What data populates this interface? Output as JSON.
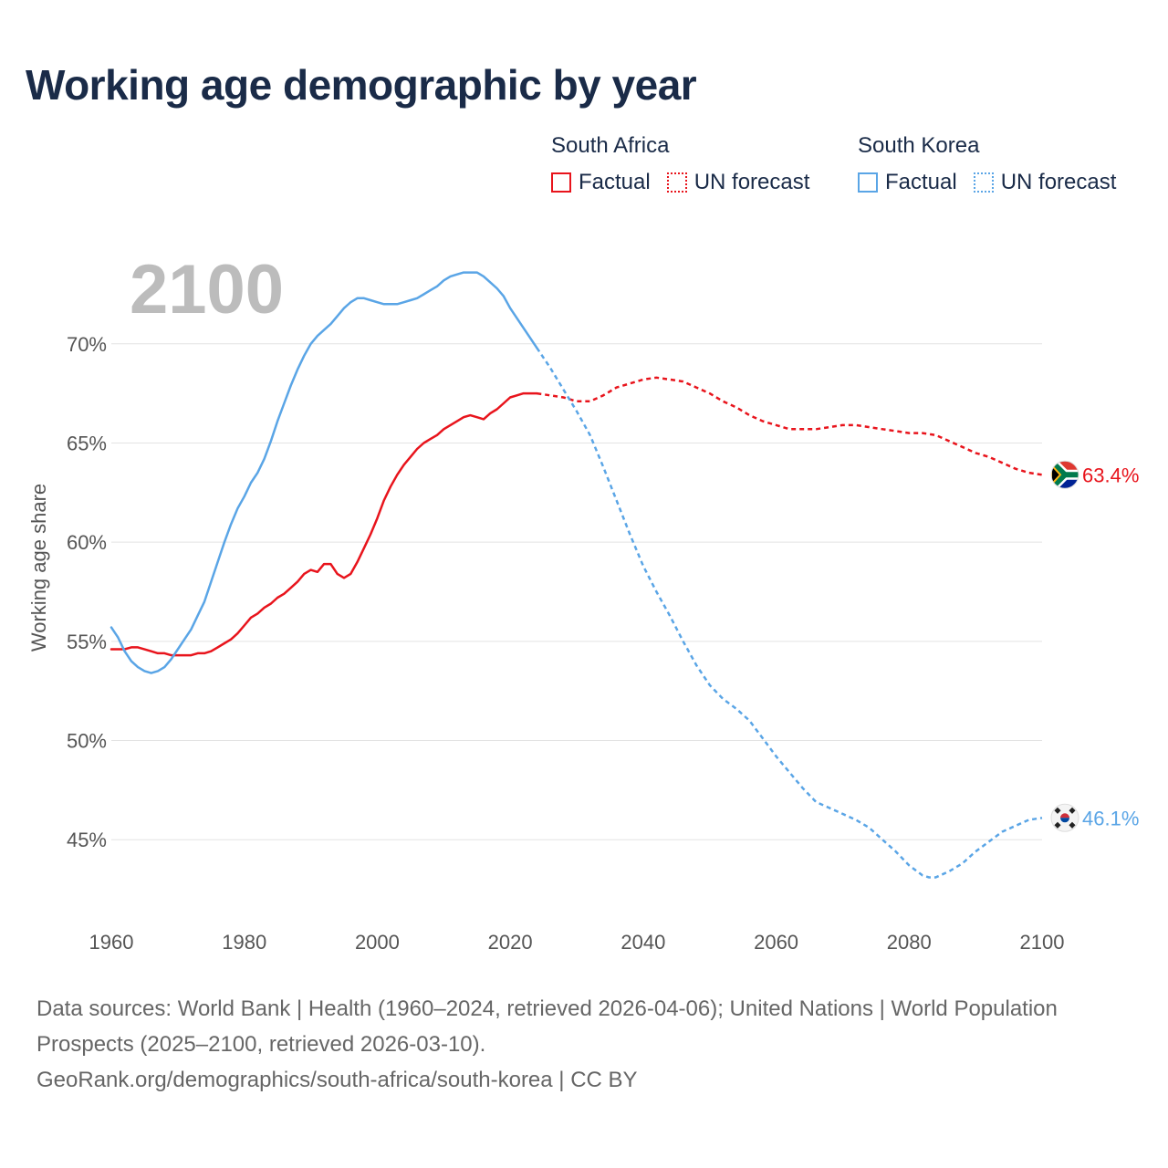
{
  "title": "Working age demographic by year",
  "legend": {
    "groups": [
      {
        "name": "South Africa",
        "color": "#e8141c",
        "factual_label": "Factual",
        "forecast_label": "UN forecast"
      },
      {
        "name": "South Korea",
        "color": "#5aa5e6",
        "factual_label": "Factual",
        "forecast_label": "UN forecast"
      }
    ]
  },
  "chart_data": {
    "type": "line",
    "title": "Working age demographic by year",
    "ylabel": "Working age share",
    "xlabel": "",
    "xlim": [
      1960,
      2100
    ],
    "ylim": [
      40.5,
      74.5
    ],
    "x_ticks": [
      1960,
      1980,
      2000,
      2020,
      2040,
      2060,
      2080,
      2100
    ],
    "x_tick_labels": [
      "1960",
      "1980",
      "2000",
      "2020",
      "2040",
      "2060",
      "2080",
      "2100"
    ],
    "y_ticks": [
      45,
      50,
      55,
      60,
      65,
      70
    ],
    "y_tick_labels": [
      "45%",
      "50%",
      "55%",
      "60%",
      "65%",
      "70%"
    ],
    "current_year_label": "2100",
    "factual_end_year": 2024,
    "series": [
      {
        "name": "South Africa",
        "color": "#e8141c",
        "end_label": "63.4%",
        "flag": "south-africa-flag-icon",
        "points": [
          [
            1960,
            54.6
          ],
          [
            1962,
            54.6
          ],
          [
            1963,
            54.7
          ],
          [
            1964,
            54.7
          ],
          [
            1966,
            54.5
          ],
          [
            1967,
            54.4
          ],
          [
            1968,
            54.4
          ],
          [
            1969,
            54.3
          ],
          [
            1970,
            54.3
          ],
          [
            1972,
            54.3
          ],
          [
            1973,
            54.4
          ],
          [
            1974,
            54.4
          ],
          [
            1975,
            54.5
          ],
          [
            1976,
            54.7
          ],
          [
            1977,
            54.9
          ],
          [
            1978,
            55.1
          ],
          [
            1979,
            55.4
          ],
          [
            1980,
            55.8
          ],
          [
            1981,
            56.2
          ],
          [
            1982,
            56.4
          ],
          [
            1983,
            56.7
          ],
          [
            1984,
            56.9
          ],
          [
            1985,
            57.2
          ],
          [
            1986,
            57.4
          ],
          [
            1987,
            57.7
          ],
          [
            1988,
            58.0
          ],
          [
            1989,
            58.4
          ],
          [
            1990,
            58.6
          ],
          [
            1991,
            58.5
          ],
          [
            1992,
            58.9
          ],
          [
            1993,
            58.9
          ],
          [
            1994,
            58.4
          ],
          [
            1995,
            58.2
          ],
          [
            1996,
            58.4
          ],
          [
            1997,
            59.0
          ],
          [
            1998,
            59.7
          ],
          [
            1999,
            60.4
          ],
          [
            2000,
            61.2
          ],
          [
            2001,
            62.1
          ],
          [
            2002,
            62.8
          ],
          [
            2003,
            63.4
          ],
          [
            2004,
            63.9
          ],
          [
            2005,
            64.3
          ],
          [
            2006,
            64.7
          ],
          [
            2007,
            65.0
          ],
          [
            2008,
            65.2
          ],
          [
            2009,
            65.4
          ],
          [
            2010,
            65.7
          ],
          [
            2011,
            65.9
          ],
          [
            2012,
            66.1
          ],
          [
            2013,
            66.3
          ],
          [
            2014,
            66.4
          ],
          [
            2015,
            66.3
          ],
          [
            2016,
            66.2
          ],
          [
            2017,
            66.5
          ],
          [
            2018,
            66.7
          ],
          [
            2019,
            67.0
          ],
          [
            2020,
            67.3
          ],
          [
            2021,
            67.4
          ],
          [
            2022,
            67.5
          ],
          [
            2024,
            67.5
          ],
          [
            2026,
            67.4
          ],
          [
            2028,
            67.3
          ],
          [
            2030,
            67.1
          ],
          [
            2032,
            67.1
          ],
          [
            2034,
            67.4
          ],
          [
            2036,
            67.8
          ],
          [
            2038,
            68.0
          ],
          [
            2040,
            68.2
          ],
          [
            2042,
            68.3
          ],
          [
            2044,
            68.2
          ],
          [
            2046,
            68.1
          ],
          [
            2048,
            67.8
          ],
          [
            2050,
            67.5
          ],
          [
            2052,
            67.1
          ],
          [
            2054,
            66.8
          ],
          [
            2056,
            66.4
          ],
          [
            2058,
            66.1
          ],
          [
            2060,
            65.9
          ],
          [
            2062,
            65.7
          ],
          [
            2064,
            65.7
          ],
          [
            2066,
            65.7
          ],
          [
            2068,
            65.8
          ],
          [
            2070,
            65.9
          ],
          [
            2072,
            65.9
          ],
          [
            2074,
            65.8
          ],
          [
            2076,
            65.7
          ],
          [
            2078,
            65.6
          ],
          [
            2080,
            65.5
          ],
          [
            2082,
            65.5
          ],
          [
            2084,
            65.4
          ],
          [
            2086,
            65.1
          ],
          [
            2088,
            64.8
          ],
          [
            2090,
            64.5
          ],
          [
            2092,
            64.3
          ],
          [
            2094,
            64.0
          ],
          [
            2096,
            63.7
          ],
          [
            2098,
            63.5
          ],
          [
            2100,
            63.4
          ]
        ]
      },
      {
        "name": "South Korea",
        "color": "#5aa5e6",
        "end_label": "46.1%",
        "flag": "south-korea-flag-icon",
        "points": [
          [
            1960,
            55.7
          ],
          [
            1961,
            55.2
          ],
          [
            1962,
            54.5
          ],
          [
            1963,
            54.0
          ],
          [
            1964,
            53.7
          ],
          [
            1965,
            53.5
          ],
          [
            1966,
            53.4
          ],
          [
            1967,
            53.5
          ],
          [
            1968,
            53.7
          ],
          [
            1969,
            54.1
          ],
          [
            1970,
            54.6
          ],
          [
            1971,
            55.1
          ],
          [
            1972,
            55.6
          ],
          [
            1973,
            56.3
          ],
          [
            1974,
            57.0
          ],
          [
            1975,
            58.0
          ],
          [
            1976,
            59.0
          ],
          [
            1977,
            60.0
          ],
          [
            1978,
            60.9
          ],
          [
            1979,
            61.7
          ],
          [
            1980,
            62.3
          ],
          [
            1981,
            63.0
          ],
          [
            1982,
            63.5
          ],
          [
            1983,
            64.2
          ],
          [
            1984,
            65.1
          ],
          [
            1985,
            66.1
          ],
          [
            1986,
            67.0
          ],
          [
            1987,
            67.9
          ],
          [
            1988,
            68.7
          ],
          [
            1989,
            69.4
          ],
          [
            1990,
            70.0
          ],
          [
            1991,
            70.4
          ],
          [
            1992,
            70.7
          ],
          [
            1993,
            71.0
          ],
          [
            1994,
            71.4
          ],
          [
            1995,
            71.8
          ],
          [
            1996,
            72.1
          ],
          [
            1997,
            72.3
          ],
          [
            1998,
            72.3
          ],
          [
            1999,
            72.2
          ],
          [
            2000,
            72.1
          ],
          [
            2001,
            72.0
          ],
          [
            2002,
            72.0
          ],
          [
            2003,
            72.0
          ],
          [
            2004,
            72.1
          ],
          [
            2005,
            72.2
          ],
          [
            2006,
            72.3
          ],
          [
            2007,
            72.5
          ],
          [
            2008,
            72.7
          ],
          [
            2009,
            72.9
          ],
          [
            2010,
            73.2
          ],
          [
            2011,
            73.4
          ],
          [
            2012,
            73.5
          ],
          [
            2013,
            73.6
          ],
          [
            2014,
            73.6
          ],
          [
            2015,
            73.6
          ],
          [
            2016,
            73.4
          ],
          [
            2017,
            73.1
          ],
          [
            2018,
            72.8
          ],
          [
            2019,
            72.4
          ],
          [
            2020,
            71.8
          ],
          [
            2021,
            71.3
          ],
          [
            2022,
            70.8
          ],
          [
            2023,
            70.3
          ],
          [
            2024,
            69.8
          ],
          [
            2026,
            68.8
          ],
          [
            2028,
            67.7
          ],
          [
            2030,
            66.6
          ],
          [
            2032,
            65.4
          ],
          [
            2034,
            63.8
          ],
          [
            2036,
            62.1
          ],
          [
            2038,
            60.4
          ],
          [
            2040,
            58.8
          ],
          [
            2042,
            57.5
          ],
          [
            2044,
            56.3
          ],
          [
            2046,
            55.0
          ],
          [
            2048,
            53.8
          ],
          [
            2050,
            52.8
          ],
          [
            2052,
            52.1
          ],
          [
            2054,
            51.6
          ],
          [
            2056,
            51.0
          ],
          [
            2058,
            50.1
          ],
          [
            2060,
            49.2
          ],
          [
            2062,
            48.4
          ],
          [
            2064,
            47.6
          ],
          [
            2066,
            46.9
          ],
          [
            2068,
            46.6
          ],
          [
            2070,
            46.3
          ],
          [
            2072,
            46.0
          ],
          [
            2074,
            45.6
          ],
          [
            2076,
            45.0
          ],
          [
            2078,
            44.4
          ],
          [
            2080,
            43.7
          ],
          [
            2082,
            43.2
          ],
          [
            2083,
            43.1
          ],
          [
            2084,
            43.1
          ],
          [
            2086,
            43.4
          ],
          [
            2088,
            43.8
          ],
          [
            2090,
            44.4
          ],
          [
            2092,
            44.9
          ],
          [
            2094,
            45.4
          ],
          [
            2096,
            45.7
          ],
          [
            2098,
            46.0
          ],
          [
            2100,
            46.1
          ]
        ]
      }
    ]
  },
  "footer": {
    "sources": "Data sources: World Bank | Health (1960–2024, retrieved 2026-04-06); United Nations | World Population Prospects (2025–2100, retrieved 2026-03-10).",
    "credit": "GeoRank.org/demographics/south-africa/south-korea | CC BY"
  }
}
